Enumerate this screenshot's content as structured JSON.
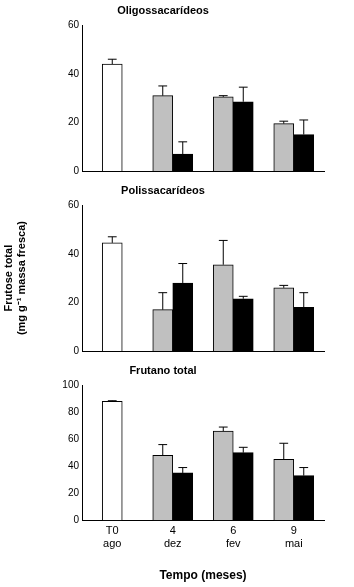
{
  "chart_data": [
    {
      "type": "bar",
      "title": "Oligossacarídeos",
      "categories": [
        [
          "T0",
          "ago"
        ],
        [
          "4",
          "dez"
        ],
        [
          "6",
          "fev"
        ],
        [
          "9",
          "mai"
        ]
      ],
      "series": [
        {
          "color": "#ffffff",
          "values": [
            44,
            null,
            null,
            null
          ],
          "errors": [
            2,
            null,
            null,
            null
          ]
        },
        {
          "color": "#c0c0c0",
          "values": [
            null,
            31,
            30.5,
            19.5
          ],
          "errors": [
            null,
            4,
            0.5,
            1
          ]
        },
        {
          "color": "#000000",
          "values": [
            null,
            7,
            28.5,
            15
          ],
          "errors": [
            null,
            5,
            6,
            6
          ]
        }
      ],
      "ylim": [
        0,
        60
      ],
      "yticks": [
        0,
        20,
        40,
        60
      ],
      "grid": false,
      "tick_labels": "y"
    },
    {
      "type": "bar",
      "title": "Polissacarídeos",
      "ylabel": [
        "Frutose total",
        "(mg g⁻¹ massa fresca)"
      ],
      "categories": [
        [
          "T0",
          "ago"
        ],
        [
          "4",
          "dez"
        ],
        [
          "6",
          "fev"
        ],
        [
          "9",
          "mai"
        ]
      ],
      "series": [
        {
          "color": "#ffffff",
          "values": [
            44.5,
            null,
            null,
            null
          ],
          "errors": [
            2.5,
            null,
            null,
            null
          ]
        },
        {
          "color": "#c0c0c0",
          "values": [
            null,
            17,
            35.5,
            26
          ],
          "errors": [
            null,
            7,
            10,
            1
          ]
        },
        {
          "color": "#000000",
          "values": [
            null,
            28,
            21.5,
            18
          ],
          "errors": [
            null,
            8,
            1,
            6
          ]
        }
      ],
      "ylim": [
        0,
        60
      ],
      "yticks": [
        0,
        20,
        40,
        60
      ],
      "grid": false,
      "tick_labels": "y"
    },
    {
      "type": "bar",
      "title": "Frutano total",
      "xlabel": "Tempo (meses)",
      "categories": [
        [
          "T0",
          "ago"
        ],
        [
          "4",
          "dez"
        ],
        [
          "6",
          "fev"
        ],
        [
          "9",
          "mai"
        ]
      ],
      "series": [
        {
          "color": "#ffffff",
          "values": [
            88,
            null,
            null,
            null
          ],
          "errors": [
            0.5,
            null,
            null,
            null
          ]
        },
        {
          "color": "#c0c0c0",
          "values": [
            null,
            48,
            66,
            45
          ],
          "errors": [
            null,
            8,
            3,
            12
          ]
        },
        {
          "color": "#000000",
          "values": [
            null,
            35,
            50,
            33
          ],
          "errors": [
            null,
            4,
            4,
            6
          ]
        }
      ],
      "ylim": [
        0,
        100
      ],
      "yticks": [
        0,
        20,
        40,
        60,
        80,
        100
      ],
      "grid": false,
      "tick_labels": true
    }
  ]
}
